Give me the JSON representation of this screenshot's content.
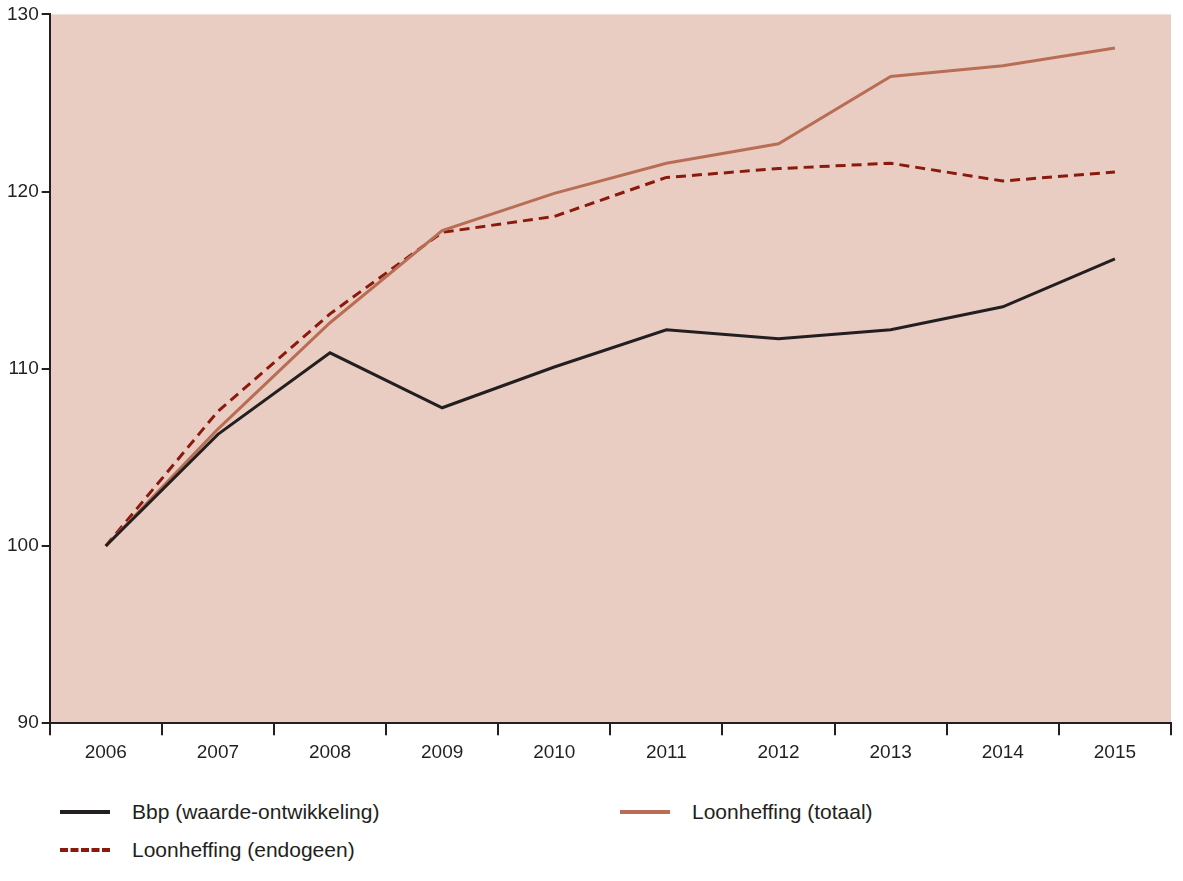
{
  "chart_data": {
    "type": "line",
    "categories": [
      "2006",
      "2007",
      "2008",
      "2009",
      "2010",
      "2011",
      "2012",
      "2013",
      "2014",
      "2015"
    ],
    "series": [
      {
        "name": "Bbp (waarde-ontwikkeling)",
        "color": "#231f20",
        "line_style": "solid",
        "values": [
          100,
          106.3,
          110.9,
          107.8,
          110.1,
          112.2,
          111.7,
          112.2,
          113.5,
          116.2
        ]
      },
      {
        "name": "Loonheffing (totaal)",
        "color": "#b86e55",
        "line_style": "solid",
        "values": [
          100,
          106.6,
          112.6,
          117.8,
          119.9,
          121.6,
          122.7,
          126.5,
          127.1,
          128.1
        ]
      },
      {
        "name": "Loonheffing (endogeen)",
        "color": "#8b1a0e",
        "line_style": "dashed",
        "values": [
          100,
          107.6,
          113.1,
          117.7,
          118.6,
          120.8,
          121.3,
          121.6,
          120.6,
          121.1
        ]
      }
    ],
    "ylim": [
      90,
      130
    ],
    "yticks": [
      90,
      100,
      110,
      120,
      130
    ],
    "grid": false,
    "legend": "bottom"
  }
}
